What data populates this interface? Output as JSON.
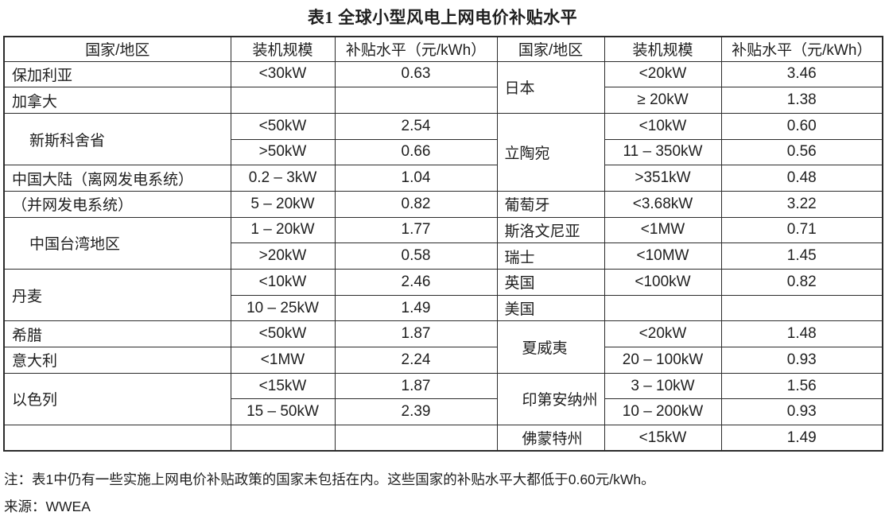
{
  "page": {
    "title": "表1 全球小型风电上网电价补贴水平",
    "note": "注：表1中仍有一些实施上网电价补贴政策的国家未包括在内。这些国家的补贴水平大都低于0.60元/kWh。",
    "source": "来源：WWEA"
  },
  "colors": {
    "bg": "#ffffff",
    "text": "#1f1f1f",
    "border": "#2b2b2b"
  },
  "table": {
    "headers": [
      "国家/地区",
      "装机规模",
      "补贴水平（元/kWh）",
      "国家/地区",
      "装机规模",
      "补贴水平（元/kWh）"
    ],
    "rows": [
      [
        {
          "text": "保加利亚"
        },
        {
          "text": "<30kW"
        },
        {
          "text": "0.63"
        },
        {
          "text": "日本",
          "rowspan": 2
        },
        {
          "text": "<20kW"
        },
        {
          "text": "3.46"
        }
      ],
      [
        {
          "text": "加拿大"
        },
        {
          "text": ""
        },
        {
          "text": ""
        },
        null,
        {
          "text": "≥ 20kW"
        },
        {
          "text": "1.38"
        }
      ],
      [
        {
          "text": "新斯科舍省",
          "rowspan": 2,
          "indent": true
        },
        {
          "text": "<50kW"
        },
        {
          "text": "2.54"
        },
        {
          "text": "立陶宛",
          "rowspan": 3
        },
        {
          "text": "<10kW"
        },
        {
          "text": "0.60"
        }
      ],
      [
        null,
        {
          "text": ">50kW"
        },
        {
          "text": "0.66"
        },
        null,
        {
          "text": "11 – 350kW"
        },
        {
          "text": "0.56"
        }
      ],
      [
        {
          "text": "中国大陆（离网发电系统）"
        },
        {
          "text": "0.2 – 3kW"
        },
        {
          "text": "1.04"
        },
        null,
        {
          "text": ">351kW"
        },
        {
          "text": "0.48"
        }
      ],
      [
        {
          "text": "（并网发电系统）"
        },
        {
          "text": "5 – 20kW"
        },
        {
          "text": "0.82"
        },
        {
          "text": "葡萄牙"
        },
        {
          "text": "<3.68kW"
        },
        {
          "text": "3.22"
        }
      ],
      [
        {
          "text": "中国台湾地区",
          "rowspan": 2,
          "indent": true
        },
        {
          "text": "1 – 20kW"
        },
        {
          "text": "1.77"
        },
        {
          "text": "斯洛文尼亚"
        },
        {
          "text": "<1MW"
        },
        {
          "text": "0.71"
        }
      ],
      [
        null,
        {
          "text": ">20kW"
        },
        {
          "text": "0.58"
        },
        {
          "text": "瑞士"
        },
        {
          "text": "<10MW"
        },
        {
          "text": "1.45"
        }
      ],
      [
        {
          "text": "丹麦",
          "rowspan": 2
        },
        {
          "text": "<10kW"
        },
        {
          "text": "2.46"
        },
        {
          "text": "英国"
        },
        {
          "text": "<100kW"
        },
        {
          "text": "0.82"
        }
      ],
      [
        null,
        {
          "text": "10 – 25kW"
        },
        {
          "text": "1.49"
        },
        {
          "text": "美国"
        },
        {
          "text": ""
        },
        {
          "text": ""
        }
      ],
      [
        {
          "text": "希腊"
        },
        {
          "text": "<50kW"
        },
        {
          "text": "1.87"
        },
        {
          "text": "夏威夷",
          "rowspan": 2,
          "indent": true
        },
        {
          "text": "<20kW"
        },
        {
          "text": "1.48"
        }
      ],
      [
        {
          "text": "意大利"
        },
        {
          "text": "<1MW"
        },
        {
          "text": "2.24"
        },
        null,
        {
          "text": "20 – 100kW"
        },
        {
          "text": "0.93"
        }
      ],
      [
        {
          "text": "以色列",
          "rowspan": 2
        },
        {
          "text": "<15kW"
        },
        {
          "text": "1.87"
        },
        {
          "text": "印第安纳州",
          "rowspan": 2,
          "indent": true
        },
        {
          "text": "3 – 10kW"
        },
        {
          "text": "1.56"
        }
      ],
      [
        null,
        {
          "text": "15 – 50kW"
        },
        {
          "text": "2.39"
        },
        null,
        {
          "text": "10 – 200kW"
        },
        {
          "text": "0.93"
        }
      ],
      [
        {
          "text": ""
        },
        {
          "text": ""
        },
        {
          "text": ""
        },
        {
          "text": "佛蒙特州",
          "indent": true
        },
        {
          "text": "<15kW"
        },
        {
          "text": "1.49"
        }
      ]
    ]
  }
}
